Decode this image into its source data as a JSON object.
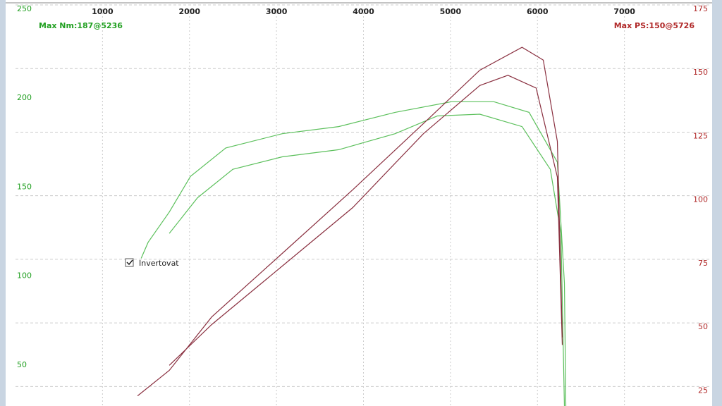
{
  "chart_data": {
    "type": "line",
    "xlim": [
      0,
      8000
    ],
    "xticks": [
      1000,
      2000,
      3000,
      4000,
      5000,
      6000,
      7000
    ],
    "ylim": [
      27,
      250
    ],
    "yticks": [
      50,
      100,
      150,
      200,
      250
    ],
    "y2lim": [
      19,
      175
    ],
    "y2ticks": [
      25,
      50,
      75,
      100,
      125,
      150,
      175
    ],
    "grid": true,
    "annotations": [
      "Max Nm:187@5236",
      "Max PS:150@5726"
    ],
    "checkbox": "Invertovat",
    "series": [
      {
        "color": "#5cc05c",
        "x": [
          1444,
          1525,
          1768,
          2011,
          2417,
          3066,
          3715,
          4363,
          5012,
          5499,
          5904,
          6229,
          6310,
          6326
        ],
        "values": [
          110,
          119,
          136,
          156,
          172,
          180,
          184,
          192,
          198,
          198,
          192,
          164,
          96,
          27
        ]
      },
      {
        "color": "#5cc05c",
        "x": [
          1768,
          2092,
          2498,
          3066,
          3715,
          4363,
          4850,
          5337,
          5823,
          6148,
          6270,
          6310
        ],
        "values": [
          124,
          144,
          160,
          167,
          171,
          180,
          190,
          191,
          184,
          160,
          124,
          27
        ]
      },
      {
        "color": "#8a3040",
        "axis": "y2",
        "x": [
          1403,
          1768,
          2255,
          3066,
          3877,
          4688,
          5337,
          5823,
          6067,
          6229,
          6286
        ],
        "values": [
          23,
          33,
          54,
          79,
          104,
          130,
          151,
          160,
          155,
          123,
          46
        ]
      },
      {
        "color": "#8a3040",
        "axis": "y2",
        "x": [
          1768,
          2255,
          3066,
          3877,
          4688,
          5337,
          5661,
          5985,
          6229,
          6286
        ],
        "values": [
          35,
          51,
          74,
          97,
          126,
          145,
          149,
          144,
          109,
          43
        ]
      }
    ]
  }
}
